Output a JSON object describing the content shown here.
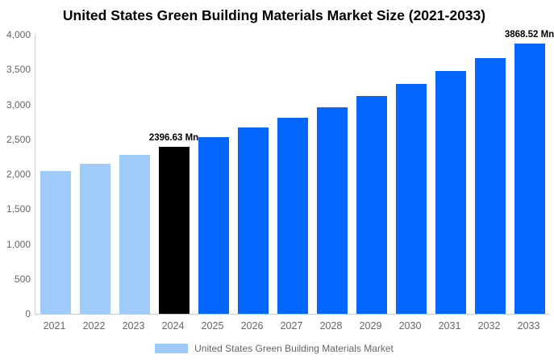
{
  "title": "United States Green Building Materials Market Size (2021-2033)",
  "chart_data": {
    "type": "bar",
    "title": "United States Green Building Materials Market Size (2021-2033)",
    "categories": [
      "2021",
      "2022",
      "2023",
      "2024",
      "2025",
      "2026",
      "2027",
      "2028",
      "2029",
      "2030",
      "2031",
      "2032",
      "2033"
    ],
    "series": [
      {
        "name": "United States Green Building Materials Market",
        "values": [
          2043,
          2155,
          2273,
          2396.63,
          2527,
          2665,
          2811,
          2964,
          3126,
          3297,
          3477,
          3667,
          3868.52
        ]
      }
    ],
    "units": "Mn",
    "bar_roles": [
      "historical",
      "historical",
      "historical",
      "current",
      "forecast",
      "forecast",
      "forecast",
      "forecast",
      "forecast",
      "forecast",
      "forecast",
      "forecast",
      "forecast"
    ],
    "colors": {
      "historical": "#9ECBFA",
      "current": "#000000",
      "forecast": "#0566FE"
    },
    "annotations": [
      {
        "category": "2024",
        "text": "2396.63 Mn"
      },
      {
        "category": "2033",
        "text": "3868.52 Mn"
      }
    ],
    "xlabel": "",
    "ylabel": "",
    "ylim": [
      0,
      4000
    ],
    "ytick_labels": [
      "0",
      "500",
      "1,000",
      "1,500",
      "2,000",
      "2,500",
      "3,000",
      "3,500",
      "4,000"
    ],
    "grid": false,
    "axis_line_color": "#CCCCCC",
    "tick_text_color": "#666666",
    "legend": {
      "position": "bottom",
      "label": "United States Green Building Materials Market",
      "swatch_color": "#9ECBFA"
    }
  }
}
